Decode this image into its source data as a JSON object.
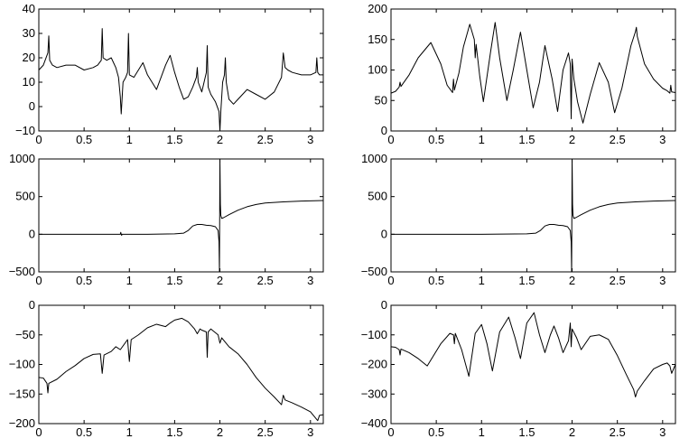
{
  "chart_data": [
    {
      "type": "line",
      "title": "",
      "xlabel": "",
      "ylabel": "",
      "xlim": [
        0,
        3.14159
      ],
      "ylim": [
        -10,
        40
      ],
      "grid": false,
      "x_ticks": [
        "0",
        "0.5",
        "1",
        "1.5",
        "2",
        "2.5",
        "3"
      ],
      "y_ticks": [
        "-10",
        "0",
        "10",
        "20",
        "30",
        "40"
      ],
      "series": [
        {
          "x": [
            0,
            0.05,
            0.1,
            0.11,
            0.12,
            0.15,
            0.2,
            0.3,
            0.4,
            0.5,
            0.6,
            0.65,
            0.69,
            0.7,
            0.71,
            0.75,
            0.8,
            0.85,
            0.88,
            0.9,
            0.91,
            0.93,
            0.96,
            0.98,
            0.99,
            1.0,
            1.05,
            1.1,
            1.15,
            1.2,
            1.3,
            1.35,
            1.4,
            1.45,
            1.5,
            1.55,
            1.6,
            1.65,
            1.7,
            1.74,
            1.75,
            1.76,
            1.8,
            1.85,
            1.86,
            1.87,
            1.9,
            1.95,
            1.99,
            2.0,
            2.01,
            2.03,
            2.05,
            2.06,
            2.07,
            2.1,
            2.15,
            2.2,
            2.3,
            2.4,
            2.5,
            2.6,
            2.68,
            2.7,
            2.72,
            2.75,
            2.8,
            2.9,
            3.0,
            3.06,
            3.07,
            3.08,
            3.1,
            3.14159
          ],
          "y": [
            15,
            17,
            22,
            29,
            19,
            17,
            16,
            17,
            17,
            15,
            16,
            17,
            19,
            32,
            20,
            19,
            20,
            16,
            12,
            4,
            -3,
            10,
            12,
            14,
            30,
            13,
            12,
            15,
            18,
            13,
            7,
            12,
            17,
            21,
            14,
            8,
            3,
            4,
            8,
            12,
            16,
            10,
            6,
            14,
            25,
            8,
            5,
            2,
            -2,
            -10,
            -2,
            10,
            13,
            20,
            10,
            3,
            1,
            3,
            7,
            5,
            3,
            6,
            12,
            22,
            16,
            15,
            14,
            13,
            13,
            14,
            20,
            14,
            13,
            13
          ]
        }
      ]
    },
    {
      "type": "line",
      "title": "",
      "xlabel": "",
      "ylabel": "",
      "xlim": [
        0,
        3.14159
      ],
      "ylim": [
        0,
        200
      ],
      "grid": false,
      "x_ticks": [
        "0",
        "0.5",
        "1",
        "1.5",
        "2",
        "2.5",
        "3"
      ],
      "y_ticks": [
        "0",
        "50",
        "100",
        "150",
        "200"
      ],
      "series": [
        {
          "x": [
            0,
            0.05,
            0.09,
            0.1,
            0.11,
            0.2,
            0.3,
            0.44,
            0.55,
            0.62,
            0.68,
            0.69,
            0.7,
            0.75,
            0.8,
            0.87,
            0.92,
            0.93,
            0.94,
            0.98,
            1.02,
            1.1,
            1.15,
            1.2,
            1.28,
            1.35,
            1.43,
            1.5,
            1.57,
            1.64,
            1.7,
            1.78,
            1.84,
            1.9,
            1.96,
            1.98,
            1.99,
            2.0,
            2.02,
            2.06,
            2.12,
            2.2,
            2.3,
            2.4,
            2.47,
            2.55,
            2.65,
            2.7,
            2.71,
            2.72,
            2.8,
            2.9,
            3.0,
            3.05,
            3.08,
            3.09,
            3.1,
            3.14159
          ],
          "y": [
            62,
            65,
            72,
            80,
            73,
            92,
            120,
            145,
            110,
            75,
            63,
            85,
            67,
            95,
            138,
            175,
            150,
            120,
            142,
            90,
            48,
            130,
            178,
            120,
            50,
            100,
            162,
            100,
            38,
            80,
            140,
            85,
            32,
            100,
            128,
            110,
            20,
            118,
            85,
            48,
            13,
            60,
            112,
            80,
            30,
            70,
            140,
            163,
            170,
            155,
            110,
            85,
            70,
            66,
            62,
            75,
            64,
            63
          ]
        }
      ]
    },
    {
      "type": "line",
      "title": "",
      "xlabel": "",
      "ylabel": "",
      "xlim": [
        0,
        3.14159
      ],
      "ylim": [
        -500,
        1000
      ],
      "grid": false,
      "x_ticks": [
        "0",
        "0.5",
        "1",
        "1.5",
        "2",
        "2.5",
        "3"
      ],
      "y_ticks": [
        "-500",
        "0",
        "500",
        "1000"
      ],
      "series": [
        {
          "x": [
            0,
            0.5,
            0.9,
            0.905,
            0.91,
            0.915,
            0.92,
            1.2,
            1.5,
            1.6,
            1.65,
            1.7,
            1.75,
            1.8,
            1.85,
            1.9,
            1.95,
            1.98,
            1.99,
            1.995,
            2.0,
            2.005,
            2.01,
            2.02,
            2.04,
            2.1,
            2.2,
            2.3,
            2.4,
            2.5,
            2.7,
            2.9,
            3.14159
          ],
          "y": [
            0,
            0,
            0,
            25,
            0,
            -15,
            0,
            0,
            5,
            15,
            50,
            110,
            130,
            130,
            120,
            115,
            100,
            50,
            -100,
            -500,
            1000,
            400,
            250,
            210,
            220,
            260,
            320,
            365,
            395,
            415,
            430,
            440,
            448
          ]
        }
      ]
    },
    {
      "type": "line",
      "title": "",
      "xlabel": "",
      "ylabel": "",
      "xlim": [
        0,
        3.14159
      ],
      "ylim": [
        -500,
        1000
      ],
      "grid": false,
      "x_ticks": [
        "0",
        "0.5",
        "1",
        "1.5",
        "2",
        "2.5",
        "3"
      ],
      "y_ticks": [
        "-500",
        "0",
        "500",
        "1000"
      ],
      "series": [
        {
          "x": [
            0,
            0.5,
            1.0,
            1.5,
            1.6,
            1.65,
            1.7,
            1.75,
            1.8,
            1.85,
            1.9,
            1.95,
            1.98,
            1.99,
            1.995,
            2.0,
            2.005,
            2.01,
            2.02,
            2.04,
            2.1,
            2.2,
            2.3,
            2.4,
            2.5,
            2.7,
            2.9,
            3.14159
          ],
          "y": [
            0,
            0,
            0,
            5,
            15,
            50,
            110,
            130,
            130,
            120,
            115,
            100,
            50,
            -100,
            -500,
            1000,
            400,
            250,
            210,
            220,
            260,
            320,
            365,
            395,
            415,
            430,
            440,
            448
          ]
        }
      ]
    },
    {
      "type": "line",
      "title": "",
      "xlabel": "",
      "ylabel": "",
      "xlim": [
        0,
        3.14159
      ],
      "ylim": [
        -200,
        0
      ],
      "grid": false,
      "x_ticks": [
        "0",
        "0.5",
        "1",
        "1.5",
        "2",
        "2.5",
        "3"
      ],
      "y_ticks": [
        "-200",
        "-150",
        "-100",
        "-50",
        "0"
      ],
      "series": [
        {
          "x": [
            0,
            0.05,
            0.09,
            0.1,
            0.11,
            0.2,
            0.3,
            0.4,
            0.5,
            0.6,
            0.68,
            0.7,
            0.72,
            0.8,
            0.85,
            0.9,
            0.98,
            1.0,
            1.02,
            1.1,
            1.2,
            1.3,
            1.4,
            1.45,
            1.5,
            1.58,
            1.65,
            1.72,
            1.75,
            1.78,
            1.8,
            1.85,
            1.86,
            1.87,
            1.9,
            1.98,
            2.0,
            2.02,
            2.1,
            2.2,
            2.3,
            2.4,
            2.5,
            2.6,
            2.68,
            2.7,
            2.72,
            2.8,
            2.9,
            3.0,
            3.08,
            3.1,
            3.14159
          ],
          "y": [
            -122,
            -123,
            -132,
            -148,
            -132,
            -125,
            -112,
            -102,
            -90,
            -83,
            -82,
            -115,
            -84,
            -78,
            -70,
            -75,
            -58,
            -95,
            -58,
            -50,
            -38,
            -32,
            -36,
            -30,
            -25,
            -22,
            -28,
            -40,
            -48,
            -40,
            -42,
            -45,
            -88,
            -45,
            -40,
            -50,
            -64,
            -55,
            -70,
            -82,
            -100,
            -122,
            -140,
            -155,
            -168,
            -152,
            -160,
            -165,
            -172,
            -180,
            -195,
            -186,
            -185
          ]
        }
      ]
    },
    {
      "type": "line",
      "title": "",
      "xlabel": "",
      "ylabel": "",
      "xlim": [
        0,
        3.14159
      ],
      "ylim": [
        -400,
        0
      ],
      "grid": false,
      "x_ticks": [
        "0",
        "0.5",
        "1",
        "1.5",
        "2",
        "2.5",
        "3"
      ],
      "y_ticks": [
        "-400",
        "-300",
        "-200",
        "-100",
        "0"
      ],
      "series": [
        {
          "x": [
            0,
            0.05,
            0.09,
            0.1,
            0.11,
            0.2,
            0.3,
            0.4,
            0.55,
            0.65,
            0.69,
            0.7,
            0.71,
            0.78,
            0.86,
            0.93,
            1.0,
            1.06,
            1.12,
            1.2,
            1.3,
            1.37,
            1.43,
            1.5,
            1.58,
            1.64,
            1.7,
            1.76,
            1.8,
            1.85,
            1.9,
            1.96,
            1.98,
            1.99,
            2.0,
            2.05,
            2.1,
            2.2,
            2.3,
            2.4,
            2.5,
            2.6,
            2.68,
            2.7,
            2.72,
            2.8,
            2.9,
            3.0,
            3.05,
            3.08,
            3.1,
            3.14159
          ],
          "y": [
            -140,
            -142,
            -150,
            -168,
            -148,
            -160,
            -180,
            -205,
            -130,
            -95,
            -100,
            -130,
            -95,
            -150,
            -240,
            -95,
            -65,
            -130,
            -222,
            -90,
            -40,
            -110,
            -180,
            -60,
            -25,
            -100,
            -160,
            -100,
            -70,
            -110,
            -160,
            -120,
            -60,
            -140,
            -80,
            -110,
            -150,
            -105,
            -100,
            -115,
            -170,
            -235,
            -285,
            -310,
            -290,
            -255,
            -215,
            -200,
            -195,
            -205,
            -230,
            -200
          ]
        }
      ]
    }
  ]
}
